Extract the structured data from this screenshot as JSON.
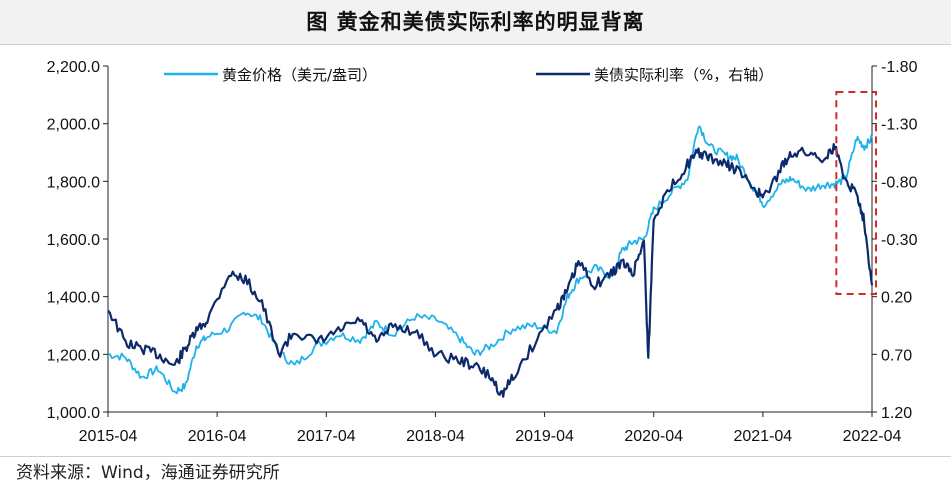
{
  "title": "图  黄金和美债实际利率的明显背离",
  "source": "资料来源：Wind，海通证券研究所",
  "colors": {
    "gold": "#1fb1ea",
    "real_rate": "#0d2a6b",
    "highlight_box": "#d42a2a",
    "axis": "#222222",
    "title_bg": "#f2f2f2"
  },
  "chart_data": {
    "type": "line",
    "title": "图  黄金和美债实际利率的明显背离",
    "x_ticks": [
      "2015-04",
      "2016-04",
      "2017-04",
      "2018-04",
      "2019-04",
      "2020-04",
      "2021-04",
      "2022-04"
    ],
    "x_range": [
      2015.29,
      2022.29
    ],
    "y_left": {
      "ylim": [
        1000,
        2200
      ],
      "ticks": [
        1000,
        1200,
        1400,
        1600,
        1800,
        2000,
        2200
      ],
      "tick_labels": [
        "1,000.0",
        "1,200.0",
        "1,400.0",
        "1,600.0",
        "1,800.0",
        "2,000.0",
        "2,200.0"
      ]
    },
    "y_right": {
      "ylim": [
        -1.8,
        1.2
      ],
      "inverted": true,
      "ticks": [
        -1.8,
        -1.3,
        -0.8,
        -0.3,
        0.2,
        0.7,
        1.2
      ],
      "tick_labels": [
        "-1.80",
        "-1.30",
        "-0.80",
        "-0.30",
        "0.20",
        "0.70",
        "1.20"
      ]
    },
    "legend_position": "top",
    "grid": false,
    "series": [
      {
        "name": "黄金价格（美元/盎司）",
        "axis": "left",
        "color": "#1fb1ea",
        "x": [
          2015.29,
          2015.45,
          2015.6,
          2015.75,
          2015.9,
          2016.0,
          2016.1,
          2016.2,
          2016.4,
          2016.55,
          2016.7,
          2016.85,
          2017.0,
          2017.2,
          2017.4,
          2017.6,
          2017.75,
          2017.9,
          2018.1,
          2018.3,
          2018.5,
          2018.65,
          2018.8,
          2019.0,
          2019.2,
          2019.4,
          2019.5,
          2019.6,
          2019.75,
          2019.9,
          2020.0,
          2020.1,
          2020.2,
          2020.29,
          2020.45,
          2020.6,
          2020.7,
          2020.8,
          2020.95,
          2021.05,
          2021.2,
          2021.3,
          2021.45,
          2021.55,
          2021.7,
          2021.85,
          2021.95,
          2022.05,
          2022.15,
          2022.22,
          2022.29
        ],
        "values": [
          1200,
          1190,
          1120,
          1150,
          1070,
          1090,
          1230,
          1260,
          1290,
          1350,
          1320,
          1210,
          1160,
          1230,
          1270,
          1250,
          1310,
          1270,
          1330,
          1320,
          1260,
          1200,
          1230,
          1290,
          1300,
          1280,
          1400,
          1460,
          1500,
          1470,
          1560,
          1590,
          1600,
          1700,
          1760,
          1810,
          2000,
          1920,
          1890,
          1880,
          1780,
          1720,
          1790,
          1810,
          1770,
          1790,
          1790,
          1810,
          1950,
          1920,
          1950
        ]
      },
      {
        "name": "美债实际利率（%，右轴）",
        "axis": "right",
        "color": "#0d2a6b",
        "x": [
          2015.29,
          2015.45,
          2015.6,
          2015.75,
          2015.9,
          2016.0,
          2016.1,
          2016.2,
          2016.4,
          2016.55,
          2016.7,
          2016.85,
          2017.0,
          2017.2,
          2017.4,
          2017.6,
          2017.75,
          2017.9,
          2018.1,
          2018.3,
          2018.5,
          2018.65,
          2018.8,
          2018.9,
          2019.0,
          2019.2,
          2019.4,
          2019.5,
          2019.6,
          2019.75,
          2019.9,
          2020.0,
          2020.1,
          2020.2,
          2020.24,
          2020.29,
          2020.45,
          2020.6,
          2020.7,
          2020.8,
          2020.95,
          2021.05,
          2021.2,
          2021.3,
          2021.45,
          2021.55,
          2021.7,
          2021.85,
          2021.95,
          2022.05,
          2022.15,
          2022.22,
          2022.29
        ],
        "values": [
          0.3,
          0.6,
          0.65,
          0.7,
          0.8,
          0.65,
          0.5,
          0.4,
          0.0,
          0.05,
          0.25,
          0.7,
          0.5,
          0.6,
          0.5,
          0.4,
          0.6,
          0.45,
          0.5,
          0.7,
          0.75,
          0.8,
          0.9,
          1.05,
          0.9,
          0.6,
          0.3,
          0.15,
          -0.1,
          0.1,
          0.0,
          -0.1,
          0.0,
          -0.3,
          0.75,
          -0.5,
          -0.75,
          -0.95,
          -1.05,
          -1.0,
          -0.95,
          -0.9,
          -0.75,
          -0.65,
          -0.9,
          -1.05,
          -1.05,
          -1.0,
          -1.1,
          -0.8,
          -0.7,
          -0.45,
          0.1
        ]
      }
    ],
    "highlight": {
      "x_range": [
        2022.0,
        2022.29
      ],
      "style": "red dashed box"
    }
  }
}
